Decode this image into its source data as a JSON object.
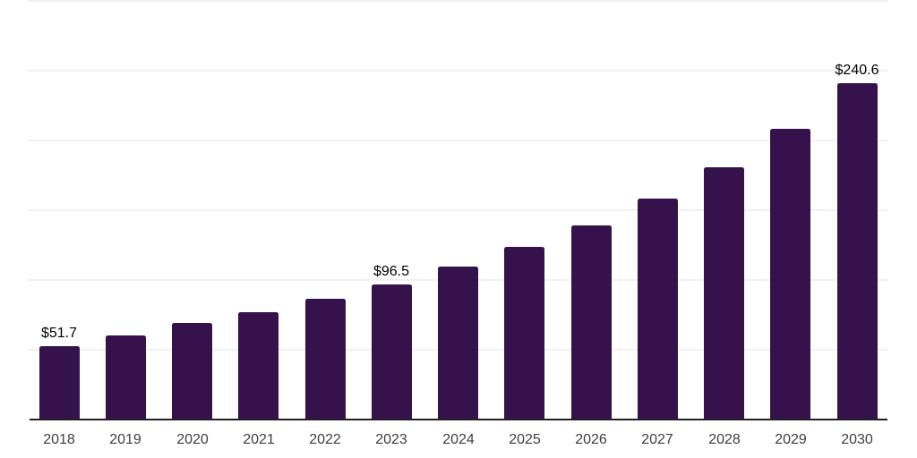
{
  "page": {
    "background_color": "#ffffff"
  },
  "chart_data": {
    "type": "bar",
    "title": "",
    "xlabel": "",
    "ylabel": "",
    "categories": [
      "2018",
      "2019",
      "2020",
      "2021",
      "2022",
      "2023",
      "2024",
      "2025",
      "2026",
      "2027",
      "2028",
      "2029",
      "2030"
    ],
    "values": [
      51.7,
      59.6,
      68.5,
      76.1,
      85.7,
      96.5,
      108.8,
      122.9,
      138.9,
      158.1,
      180.4,
      208.0,
      240.6
    ],
    "value_labels": [
      {
        "category": "2018",
        "label": "$51.7"
      },
      {
        "category": "2023",
        "label": "$96.5"
      },
      {
        "category": "2030",
        "label": "$240.6"
      }
    ],
    "currency_prefix": "$",
    "ylim": [
      0,
      300
    ],
    "grid_step": 50,
    "grid": true,
    "legend": false,
    "bar_color": "#36124D",
    "axis_color": "#212121",
    "gridline_color": "#f1f1f1",
    "xtick_color": "#3e3e3e",
    "value_label_color": "#000000"
  }
}
